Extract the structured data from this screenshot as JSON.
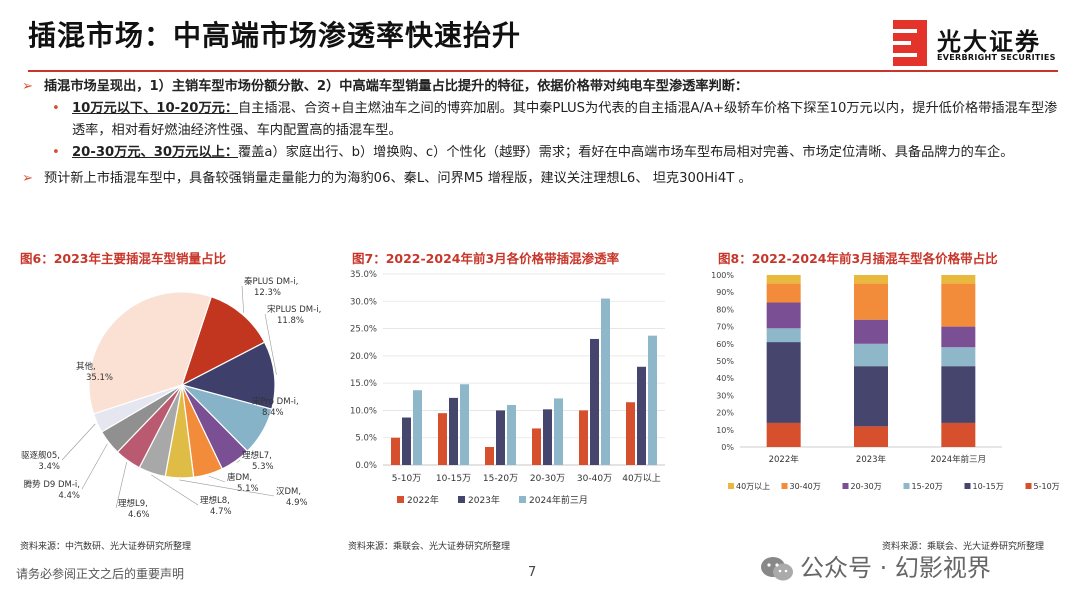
{
  "header": {
    "title": "插混市场：中高端市场渗透率快速抬升",
    "logo_cn": "光大证券",
    "logo_en": "EVERBRIGHT SECURITIES"
  },
  "bullets": {
    "main": "插混市场呈现出，1）主销车型市场份额分散、2）中高端车型销量占比提升的特征，依据价格带对纯电车型渗透率判断：",
    "sub1_head": "10万元以下、10-20万元：",
    "sub1_body": "自主插混、合资+自主燃油车之间的博弈加剧。其中秦PLUS为代表的自主插混A/A+级轿车价格下探至10万元以内，提升低价格带插混车型渗透率，相对看好燃油经济性强、车内配置高的插混车型。",
    "sub2_head": "20-30万元、30万元以上：",
    "sub2_body": "覆盖a）家庭出行、b）增换购、c）个性化（越野）需求；看好在中高端市场车型布局相对完善、市场定位清晰、具备品牌力的车企。",
    "forecast": "预计新上市插混车型中，具备较强销量走量能力的为海豹06、秦L、问界M5 增程版，建议关注理想L6、 坦克300Hi4T 。"
  },
  "sources": {
    "fig6": "资料来源：中汽数研、光大证券研究所整理",
    "fig7": "资料来源：乘联会、光大证券研究所整理",
    "fig8": "资料来源：乘联会、光大证券研究所整理"
  },
  "footer": {
    "disclaimer": "请务必参阅正文之后的重要声明",
    "page": "7",
    "watermark": "公众号 · 幻影视界"
  },
  "colors": {
    "accent": "#c8362a"
  },
  "chart_data": [
    {
      "type": "pie",
      "title": "图6：2023年主要插混车型销量占比",
      "slices": [
        {
          "name": "秦PLUS DM-i",
          "label": "12.3%",
          "value": 12.3,
          "color": "#c2361f"
        },
        {
          "name": "宋PLUS DM-i",
          "label": "11.8%",
          "value": 11.8,
          "color": "#3f3f6b"
        },
        {
          "name": "宋Pro DM-i",
          "label": "8.4%",
          "value": 8.4,
          "color": "#86b3c7"
        },
        {
          "name": "理想L7",
          "label": "5.3%",
          "value": 5.3,
          "color": "#7a4f93"
        },
        {
          "name": "唐DM",
          "label": "5.1%",
          "value": 5.1,
          "color": "#f28c3a"
        },
        {
          "name": "汉DM",
          "label": "4.9%",
          "value": 4.9,
          "color": "#dfbc45"
        },
        {
          "name": "理想L8",
          "label": "4.7%",
          "value": 4.7,
          "color": "#a8a8a8"
        },
        {
          "name": "理想L9",
          "label": "4.6%",
          "value": 4.6,
          "color": "#b95a70"
        },
        {
          "name": "腾势 D9 DM-i",
          "label": "4.4%",
          "value": 4.4,
          "color": "#909090"
        },
        {
          "name": "驱逐舰05",
          "label": "3.4%",
          "value": 3.4,
          "color": "#e6e6f0"
        },
        {
          "name": "其他",
          "label": "35.1%",
          "value": 35.1,
          "color": "#fbe0d4"
        }
      ]
    },
    {
      "type": "bar",
      "title": "图7：2022-2024年前3月各价格带插混渗透率",
      "categories": [
        "5-10万",
        "10-15万",
        "15-20万",
        "20-30万",
        "30-40万",
        "40万以上"
      ],
      "series": [
        {
          "name": "2022年",
          "color": "#d7502e",
          "values": [
            5.0,
            9.5,
            3.3,
            6.7,
            10.0,
            11.5
          ]
        },
        {
          "name": "2023年",
          "color": "#45456e",
          "values": [
            8.7,
            12.3,
            10.0,
            10.2,
            23.1,
            18.0
          ]
        },
        {
          "name": "2024年前三月",
          "color": "#8fb7ca",
          "values": [
            13.7,
            14.8,
            11.0,
            12.2,
            30.5,
            23.7
          ]
        }
      ],
      "ylim": [
        0,
        35
      ],
      "yticks": [
        "0.0%",
        "5.0%",
        "10.0%",
        "15.0%",
        "20.0%",
        "25.0%",
        "30.0%",
        "35.0%"
      ],
      "grid": true,
      "legend": "bottom"
    },
    {
      "type": "bar",
      "stacked": true,
      "title": "图8：2022-2024年前3月插混车型各价格带占比",
      "categories": [
        "2022年",
        "2023年",
        "2024年前三月"
      ],
      "series": [
        {
          "name": "5-10万",
          "color": "#d7502e",
          "values": [
            14,
            12,
            14
          ]
        },
        {
          "name": "10-15万",
          "color": "#45456e",
          "values": [
            47,
            35,
            33
          ]
        },
        {
          "name": "15-20万",
          "color": "#8fb7ca",
          "values": [
            8,
            13,
            11
          ]
        },
        {
          "name": "20-30万",
          "color": "#7a4f93",
          "values": [
            15,
            14,
            12
          ]
        },
        {
          "name": "30-40万",
          "color": "#f28c3a",
          "values": [
            11,
            21,
            25
          ]
        },
        {
          "name": "40万以上",
          "color": "#e8b93d",
          "values": [
            5,
            5,
            5
          ]
        }
      ],
      "ylim": [
        0,
        100
      ],
      "yticks": [
        "0%",
        "10%",
        "20%",
        "30%",
        "40%",
        "50%",
        "60%",
        "70%",
        "80%",
        "90%",
        "100%"
      ],
      "legend": "bottom",
      "legend_order": [
        "40万以上",
        "30-40万",
        "20-30万",
        "15-20万",
        "10-15万",
        "5-10万"
      ]
    }
  ]
}
